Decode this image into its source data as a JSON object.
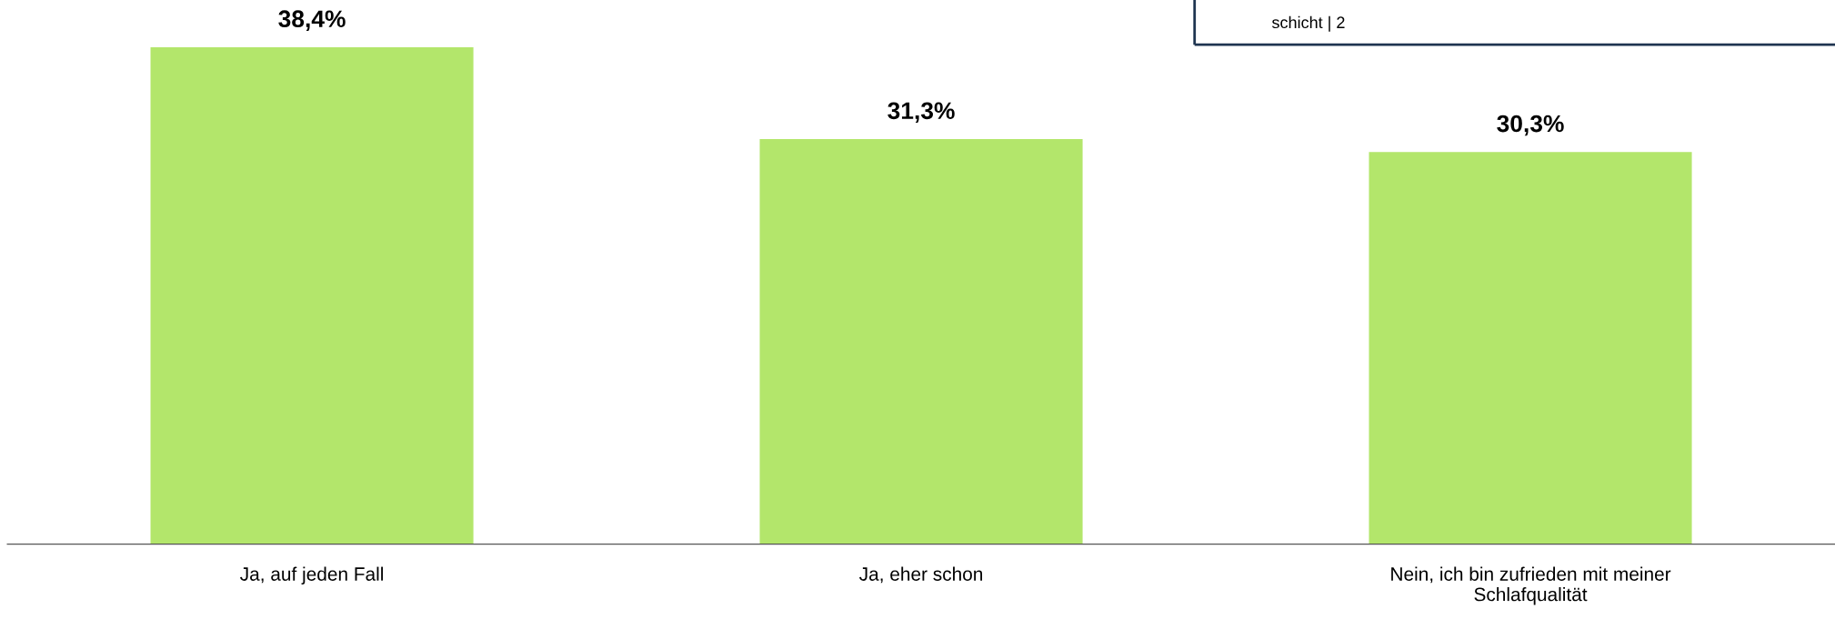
{
  "chart_data": {
    "type": "bar",
    "categories": [
      "Ja, auf jeden Fall",
      "Ja, eher schon",
      "Nein, ich bin zufrieden mit meiner\nSchlafqualität"
    ],
    "values": [
      38.4,
      31.3,
      30.3
    ],
    "value_labels": [
      "38,4%",
      "31,3%",
      "30,3%"
    ],
    "color": "#b3e66b",
    "grid": false,
    "legend": false,
    "tick_labels": "x",
    "annotations": [
      "schicht | 2"
    ]
  }
}
